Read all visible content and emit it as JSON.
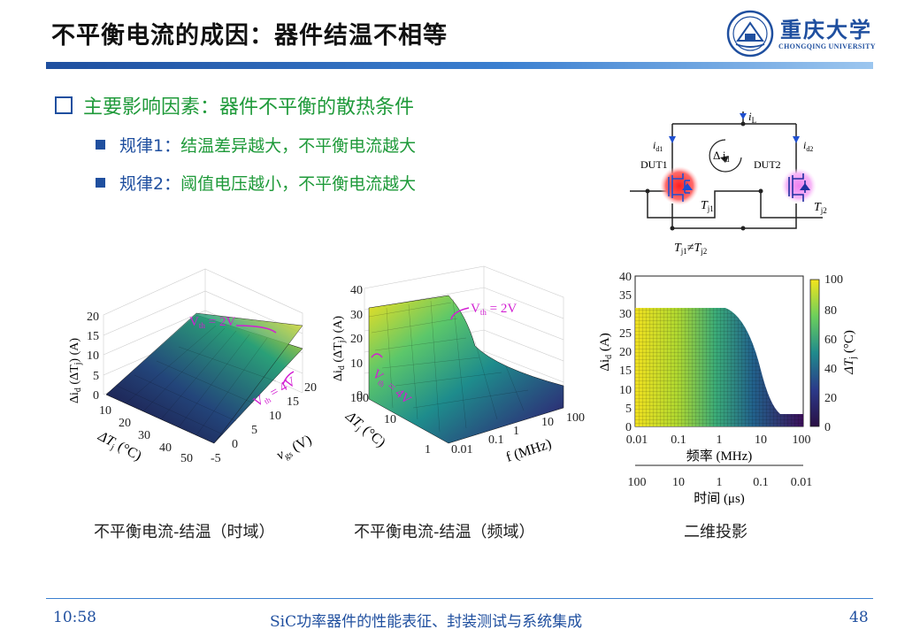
{
  "header": {
    "title": "不平衡电流的成因：器件结温不相等",
    "logo_text": "重庆大学",
    "logo_sub": "CHONGQING UNIVERSITY"
  },
  "bullets": {
    "main": "主要影响因素：器件不平衡的散热条件",
    "rules": [
      {
        "label": "规律1：",
        "text": "结温差异越大，不平衡电流越大"
      },
      {
        "label": "规律2：",
        "text": "阈值电压越小，不平衡电流越大"
      }
    ]
  },
  "circuit": {
    "iL": "i",
    "iL_sub": "L",
    "id1": "i",
    "id1_sub": "d1",
    "id2": "i",
    "id2_sub": "d2",
    "delta_id": "Δ i",
    "delta_id_sub": "d",
    "dut1": "DUT1",
    "dut2": "DUT2",
    "tj1": "T",
    "tj1_sub": "j1",
    "tj2": "T",
    "tj2_sub": "j2",
    "neq_label": "≠"
  },
  "plot_time": {
    "z_ticks": [
      "0",
      "5",
      "10",
      "15",
      "20"
    ],
    "x_ticks": [
      "10",
      "20",
      "30",
      "40",
      "50"
    ],
    "y_ticks": [
      "-5",
      "0",
      "5",
      "10",
      "15",
      "20"
    ],
    "vth_2": "V",
    "vth_4": "V",
    "vth_sub": "th",
    "vth_2_val": " = 2V",
    "vth_4_val": " = 4V",
    "xlabel": "ΔT",
    "xlabel_sub": "j",
    "xlabel_unit": " (°C)",
    "ylabel": "v",
    "ylabel_sub": "gs",
    "ylabel_unit": " (V)",
    "zlabel": "Δi",
    "zlabel_sub": "d",
    "zlabel_unit": " (ΔT",
    "zlabel_unit_sub": "j",
    "zlabel_unit_end": ") (A)"
  },
  "plot_freq": {
    "z_ticks": [
      "0",
      "10",
      "20",
      "30",
      "40"
    ],
    "x_ticks": [
      "1",
      "10",
      "100"
    ],
    "y_ticks": [
      "0.01",
      "0.1",
      "1",
      "10",
      "100"
    ],
    "vth_2": "V",
    "vth_sub": "th",
    "vth_2_val": " = 2V",
    "vth_4_val": " = 4V",
    "xlabel": "ΔT",
    "xlabel_sub": "j",
    "xlabel_unit": " (°C)",
    "ylabel": "f (MHz)",
    "zlabel": "Δi",
    "zlabel_sub": "d",
    "zlabel_unit": " (ΔT",
    "zlabel_unit_sub": "j",
    "zlabel_unit_end": ") (A)"
  },
  "plot_2d": {
    "y_ticks": [
      "0",
      "5",
      "10",
      "15",
      "20",
      "25",
      "30",
      "35",
      "40"
    ],
    "x_ticks": [
      "0.01",
      "0.1",
      "1",
      "10",
      "100"
    ],
    "x2_ticks": [
      "100",
      "10",
      "1",
      "0.1",
      "0.01"
    ],
    "cb_ticks": [
      "0",
      "20",
      "40",
      "60",
      "80",
      "100"
    ],
    "ylabel": "Δi",
    "ylabel_sub": "d",
    "ylabel_unit": " (A)",
    "xlabel": "频率 (MHz)",
    "x2label": "时间 (μs)",
    "cblabel": "ΔT",
    "cblabel_sub": "j",
    "cblabel_unit": " (°C)"
  },
  "captions": {
    "time": "不平衡电流-结温（时域）",
    "freq": "不平衡电流-结温（频域）",
    "proj": "二维投影"
  },
  "footer": {
    "time": "10:58",
    "course": "SiC功率器件的性能表征、封装测试与系统集成",
    "page": "48"
  },
  "colors": {
    "accent_blue": "#1f4f9f",
    "rule_green": "#1f9a3a",
    "annotation_magenta": "#d21fd2"
  }
}
